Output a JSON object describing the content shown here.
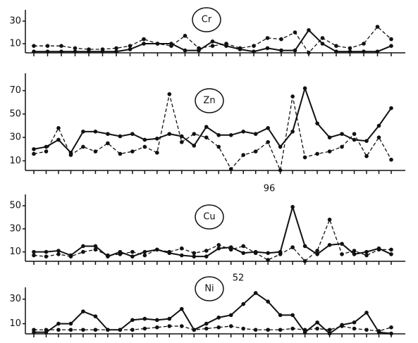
{
  "chart_data": [
    {
      "type": "line",
      "title": "Cr",
      "categories": [
        null,
        null,
        null,
        null,
        null,
        null,
        null,
        null,
        null,
        null,
        null,
        null,
        null,
        null,
        null,
        null,
        null,
        null,
        null,
        null,
        null,
        null,
        null,
        null,
        null,
        null,
        null
      ],
      "series": [
        {
          "style": "solid",
          "color": "#111",
          "values": [
            3,
            3,
            3,
            3,
            3,
            3,
            3,
            5,
            10,
            10,
            10,
            4,
            4,
            12,
            8,
            5,
            3,
            6,
            4,
            4,
            22,
            10,
            3,
            3,
            3,
            3,
            8
          ]
        },
        {
          "style": "dashed",
          "color": "#111",
          "values": [
            8,
            8,
            8,
            6,
            5,
            5,
            6,
            8,
            14,
            10,
            8,
            17,
            6,
            8,
            10,
            6,
            8,
            15,
            14,
            20,
            2,
            15,
            8,
            6,
            10,
            25,
            14
          ]
        }
      ],
      "ylim": [
        0,
        35
      ],
      "yticks": [
        10,
        30
      ]
    },
    {
      "type": "line",
      "title": "Zn",
      "categories": [
        null,
        null,
        null,
        null,
        null,
        null,
        null,
        null,
        null,
        null,
        null,
        null,
        null,
        null,
        null,
        null,
        null,
        null,
        null,
        null,
        null,
        null,
        null,
        null,
        null,
        null,
        null,
        null,
        null,
        null
      ],
      "series": [
        {
          "style": "solid",
          "color": "#111",
          "values": [
            20,
            22,
            28,
            17,
            35,
            35,
            33,
            31,
            33,
            28,
            29,
            33,
            31,
            23,
            39,
            32,
            32,
            35,
            33,
            38,
            22,
            35,
            72,
            42,
            30,
            33,
            28,
            27,
            40,
            55
          ]
        },
        {
          "style": "dashed",
          "color": "#111",
          "values": [
            16,
            18,
            38,
            15,
            22,
            18,
            25,
            16,
            18,
            22,
            17,
            67,
            26,
            33,
            30,
            22,
            3,
            15,
            18,
            26,
            2,
            65,
            13,
            16,
            18,
            22,
            33,
            14,
            30,
            11
          ]
        }
      ],
      "ylim": [
        0,
        80
      ],
      "yticks": [
        10,
        30,
        50,
        70
      ]
    },
    {
      "type": "line",
      "title": "Cu",
      "annotation": "96",
      "categories": [
        null,
        null,
        null,
        null,
        null,
        null,
        null,
        null,
        null,
        null,
        null,
        null,
        null,
        null,
        null,
        null,
        null,
        null,
        null,
        null,
        null,
        null,
        null,
        null,
        null,
        null,
        null,
        null,
        null,
        null
      ],
      "series": [
        {
          "style": "solid",
          "color": "#111",
          "values": [
            10,
            10,
            11,
            7,
            15,
            15,
            6,
            10,
            6,
            10,
            12,
            9,
            7,
            6,
            6,
            13,
            14,
            9,
            10,
            9,
            10,
            49,
            15,
            8,
            16,
            17,
            8,
            10,
            13,
            8
          ]
        },
        {
          "style": "dashed",
          "color": "#111",
          "values": [
            7,
            6,
            8,
            6,
            10,
            12,
            7,
            8,
            10,
            7,
            12,
            10,
            13,
            9,
            11,
            16,
            12,
            15,
            9,
            3,
            8,
            14,
            2,
            11,
            38,
            8,
            11,
            7,
            12,
            12
          ]
        }
      ],
      "ylim": [
        0,
        55
      ],
      "yticks": [
        10,
        30,
        50
      ]
    },
    {
      "type": "line",
      "title": "Ni",
      "annotation": "52",
      "categories": [
        null,
        null,
        null,
        null,
        null,
        null,
        null,
        null,
        null,
        null,
        null,
        null,
        null,
        null,
        null,
        null,
        null,
        null,
        null,
        null,
        null,
        null,
        null,
        null,
        null,
        null,
        null,
        null,
        null,
        null
      ],
      "series": [
        {
          "style": "solid",
          "color": "#111",
          "values": [
            3,
            3,
            10,
            10,
            20,
            16,
            5,
            5,
            13,
            14,
            13,
            14,
            22,
            5,
            10,
            15,
            17,
            26,
            35,
            28,
            17,
            17,
            3,
            11,
            2,
            9,
            11,
            19,
            3,
            2
          ]
        },
        {
          "style": "dashed",
          "color": "#111",
          "values": [
            5,
            5,
            5,
            5,
            5,
            5,
            5,
            5,
            5,
            6,
            7,
            8,
            8,
            5,
            6,
            7,
            8,
            6,
            5,
            5,
            5,
            6,
            5,
            6,
            5,
            8,
            6,
            5,
            4,
            7
          ]
        }
      ],
      "ylim": [
        0,
        35
      ],
      "yticks": [
        10,
        30
      ]
    }
  ]
}
